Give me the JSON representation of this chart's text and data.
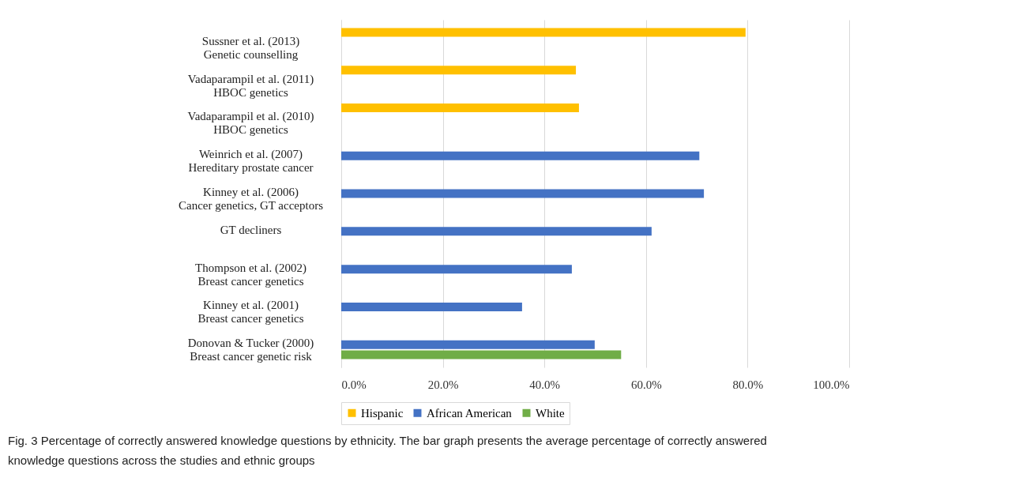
{
  "chart_data": {
    "type": "bar",
    "orientation": "horizontal",
    "categories": [
      "Sussner et al. (2013)\nGenetic counselling",
      "Vadaparampil et al. (2011)\nHBOC genetics",
      "Vadaparampil et al. (2010)\nHBOC genetics",
      "Weinrich et al. (2007)\nHereditary prostate cancer",
      "Kinney et al. (2006)\nCancer genetics, GT acceptors",
      "GT decliners",
      "Thompson et al. (2002)\nBreast cancer genetics",
      "Kinney et al. (2001)\nBreast cancer genetics",
      "Donovan & Tucker (2000)\nBreast cancer genetic risk"
    ],
    "series": [
      {
        "name": "Hispanic",
        "color": "#ffc000",
        "values": [
          79.6,
          46.2,
          46.8,
          null,
          null,
          null,
          null,
          null,
          null
        ]
      },
      {
        "name": "African American",
        "color": "#4472c4",
        "values": [
          null,
          null,
          null,
          70.5,
          71.4,
          61.1,
          45.4,
          35.6,
          49.9
        ]
      },
      {
        "name": "White",
        "color": "#70ad47",
        "values": [
          null,
          null,
          null,
          null,
          null,
          null,
          null,
          null,
          55.1
        ]
      }
    ],
    "xlim": [
      0,
      100
    ],
    "xticks": [
      {
        "value": 0,
        "label": "0.0%"
      },
      {
        "value": 20,
        "label": "20.0%"
      },
      {
        "value": 40,
        "label": "40.0%"
      },
      {
        "value": 60,
        "label": "60.0%"
      },
      {
        "value": 80,
        "label": "80.0%"
      },
      {
        "value": 100,
        "label": "100.0%"
      }
    ],
    "grid": "x",
    "legend": "bottom",
    "annotations": [
      "Fig. 3 Percentage of correctly answered knowledge questions by ethnicity. The bar graph presents the average percentage of correctly answered",
      "knowledge questions across the studies and ethnic groups"
    ]
  }
}
